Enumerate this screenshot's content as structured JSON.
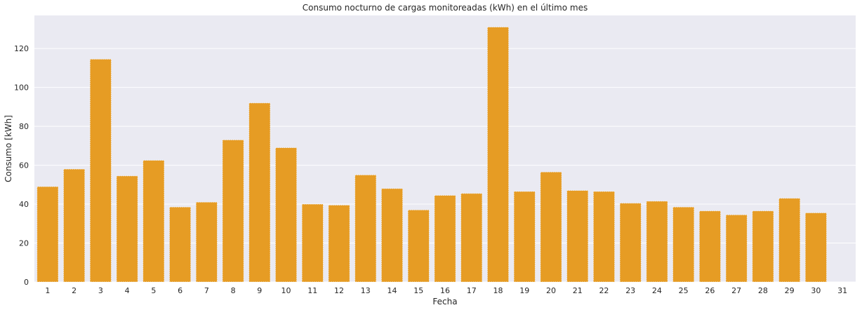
{
  "chart_data": {
    "type": "bar",
    "title": "Consumo nocturno de cargas monitoreadas (kWh) en el último mes",
    "xlabel": "Fecha",
    "ylabel": "Consumo [kWh]",
    "categories": [
      "1",
      "2",
      "3",
      "4",
      "5",
      "6",
      "7",
      "8",
      "9",
      "10",
      "11",
      "12",
      "13",
      "14",
      "15",
      "16",
      "17",
      "18",
      "19",
      "20",
      "21",
      "22",
      "23",
      "24",
      "25",
      "26",
      "27",
      "28",
      "29",
      "30",
      "31"
    ],
    "values": [
      49,
      58,
      114.5,
      54.5,
      62.5,
      38.5,
      41,
      73,
      92,
      69,
      40,
      39.5,
      55,
      48,
      37,
      44.5,
      45.5,
      131,
      46.5,
      56.5,
      47,
      46.5,
      40.5,
      41.5,
      38.5,
      36.5,
      34.5,
      36.5,
      43,
      35.5,
      0
    ],
    "ylim": [
      0,
      137
    ],
    "yticks": [
      0,
      20,
      40,
      60,
      80,
      100,
      120
    ],
    "grid": true,
    "bar_color": "#e69c24",
    "background_color": "#eaeaf2",
    "grid_color": "#ffffff"
  }
}
